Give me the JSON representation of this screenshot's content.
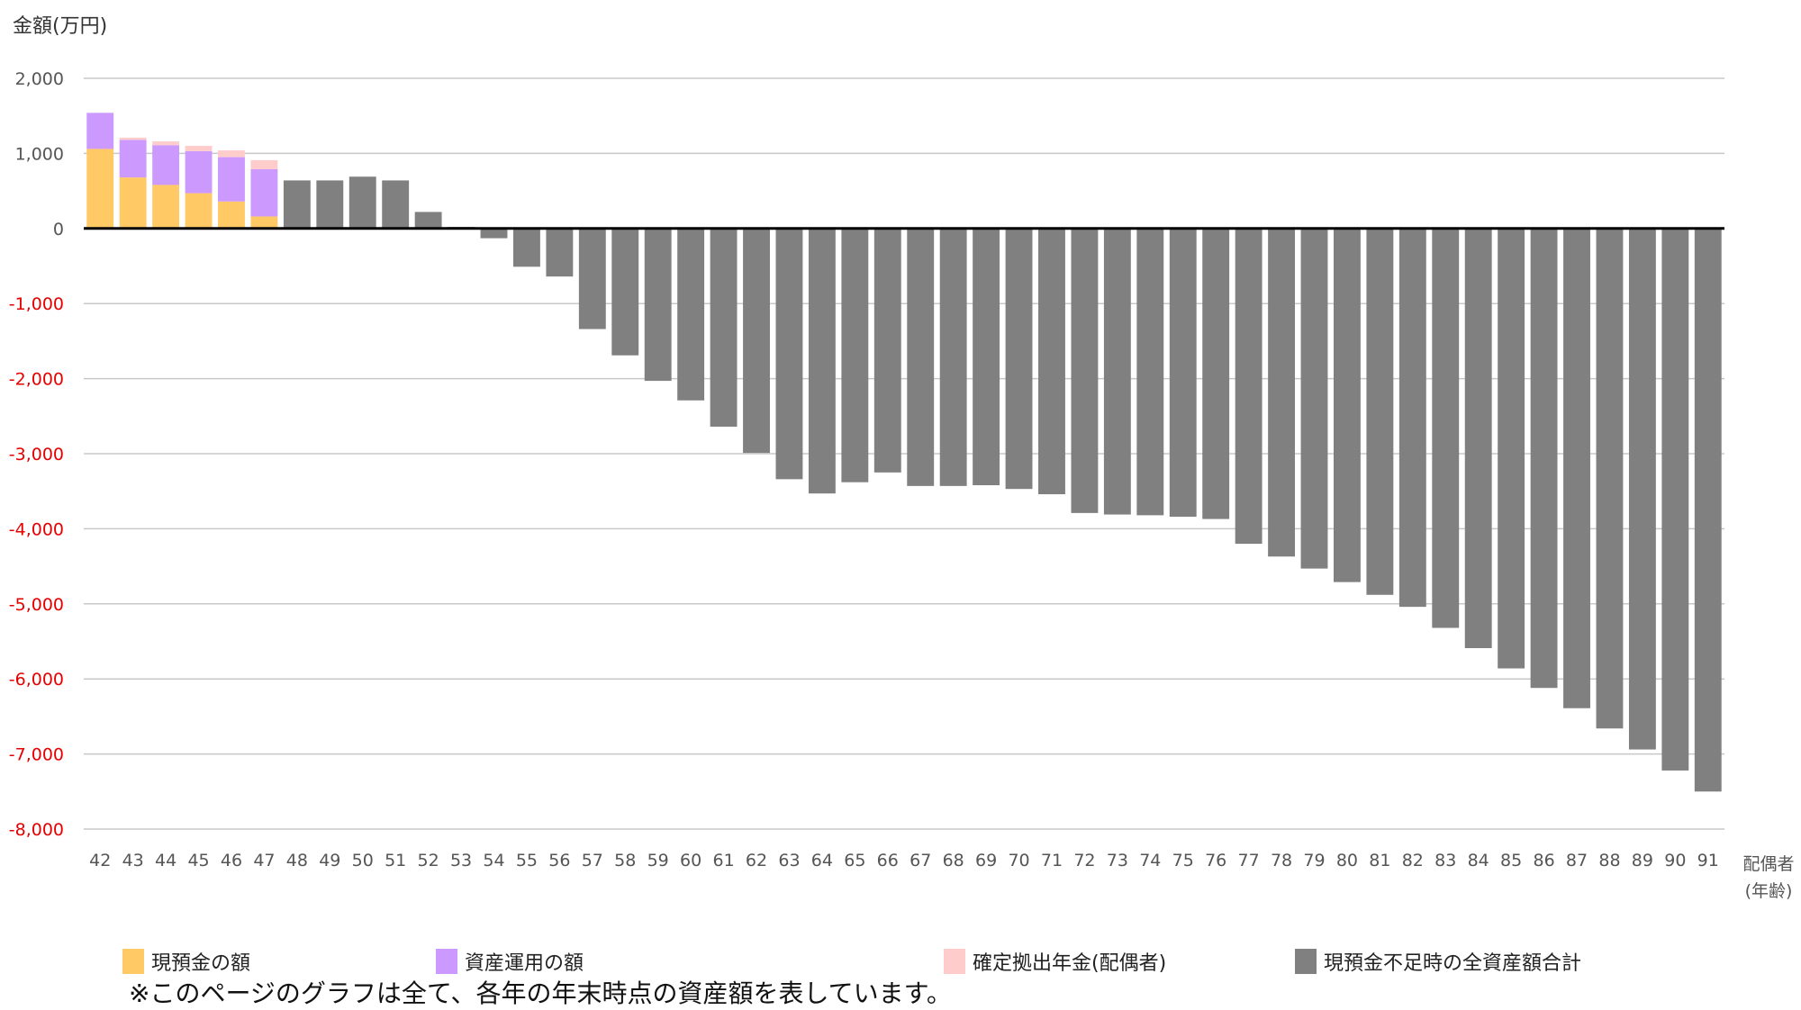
{
  "chart_data": {
    "type": "bar",
    "stacked": true,
    "ylabel": "金額(万円)",
    "xlabel_line1": "配偶者",
    "xlabel_line2": "(年齢)",
    "ylim": [
      -8000,
      2000
    ],
    "yticks": [
      2000,
      1000,
      0,
      -1000,
      -2000,
      -3000,
      -4000,
      -5000,
      -6000,
      -7000,
      -8000
    ],
    "ytick_labels": [
      "2,000",
      "1,000",
      "0",
      "-1,000",
      "-2,000",
      "-3,000",
      "-4,000",
      "-5,000",
      "-6,000",
      "-7,000",
      "-8,000"
    ],
    "negative_tick_color": "#e60000",
    "grid": true,
    "legend_position": "bottom",
    "categories": [
      "42",
      "43",
      "44",
      "45",
      "46",
      "47",
      "48",
      "49",
      "50",
      "51",
      "52",
      "53",
      "54",
      "55",
      "56",
      "57",
      "58",
      "59",
      "60",
      "61",
      "62",
      "63",
      "64",
      "65",
      "66",
      "67",
      "68",
      "69",
      "70",
      "71",
      "72",
      "73",
      "74",
      "75",
      "76",
      "77",
      "78",
      "79",
      "80",
      "81",
      "82",
      "83",
      "84",
      "85",
      "86",
      "87",
      "88",
      "89",
      "90",
      "91"
    ],
    "series": [
      {
        "name": "現預金の額",
        "color": "#ffc966",
        "values": [
          1060,
          680,
          580,
          470,
          360,
          160,
          0,
          0,
          0,
          0,
          0,
          0,
          0,
          0,
          0,
          0,
          0,
          0,
          0,
          0,
          0,
          0,
          0,
          0,
          0,
          0,
          0,
          0,
          0,
          0,
          0,
          0,
          0,
          0,
          0,
          0,
          0,
          0,
          0,
          0,
          0,
          0,
          0,
          0,
          0,
          0,
          0,
          0,
          0,
          0
        ]
      },
      {
        "name": "資産運用の額",
        "color": "#cc99ff",
        "values": [
          480,
          500,
          530,
          560,
          590,
          630,
          0,
          0,
          0,
          0,
          0,
          0,
          0,
          0,
          0,
          0,
          0,
          0,
          0,
          0,
          0,
          0,
          0,
          0,
          0,
          0,
          0,
          0,
          0,
          0,
          0,
          0,
          0,
          0,
          0,
          0,
          0,
          0,
          0,
          0,
          0,
          0,
          0,
          0,
          0,
          0,
          0,
          0,
          0,
          0
        ]
      },
      {
        "name": "確定拠出年金(配偶者)",
        "color": "#ffcccc",
        "values": [
          0,
          30,
          50,
          70,
          90,
          120,
          0,
          0,
          0,
          0,
          0,
          0,
          0,
          0,
          0,
          0,
          0,
          0,
          0,
          0,
          0,
          0,
          0,
          0,
          0,
          0,
          0,
          0,
          0,
          0,
          0,
          0,
          0,
          0,
          0,
          0,
          0,
          0,
          0,
          0,
          0,
          0,
          0,
          0,
          0,
          0,
          0,
          0,
          0,
          0
        ]
      },
      {
        "name": "現預金不足時の全資産額合計",
        "color": "#808080",
        "values": [
          0,
          0,
          0,
          0,
          0,
          0,
          640,
          640,
          690,
          640,
          220,
          20,
          -130,
          -510,
          -640,
          -1340,
          -1690,
          -2030,
          -2290,
          -2640,
          -2990,
          -3340,
          -3530,
          -3380,
          -3250,
          -3430,
          -3430,
          -3420,
          -3470,
          -3540,
          -3790,
          -3810,
          -3820,
          -3840,
          -3870,
          -4200,
          -4370,
          -4530,
          -4710,
          -4880,
          -5040,
          -5320,
          -5590,
          -5860,
          -6120,
          -6390,
          -6660,
          -6940,
          -7220,
          -7500
        ]
      }
    ]
  },
  "legend": {
    "items": [
      {
        "label": "現預金の額",
        "color": "#ffc966"
      },
      {
        "label": "資産運用の額",
        "color": "#cc99ff"
      },
      {
        "label": "確定拠出年金(配偶者)",
        "color": "#ffcccc"
      },
      {
        "label": "現預金不足時の全資産額合計",
        "color": "#808080"
      }
    ]
  },
  "note": "※このページのグラフは全て、各年の年末時点の資産額を表しています。"
}
